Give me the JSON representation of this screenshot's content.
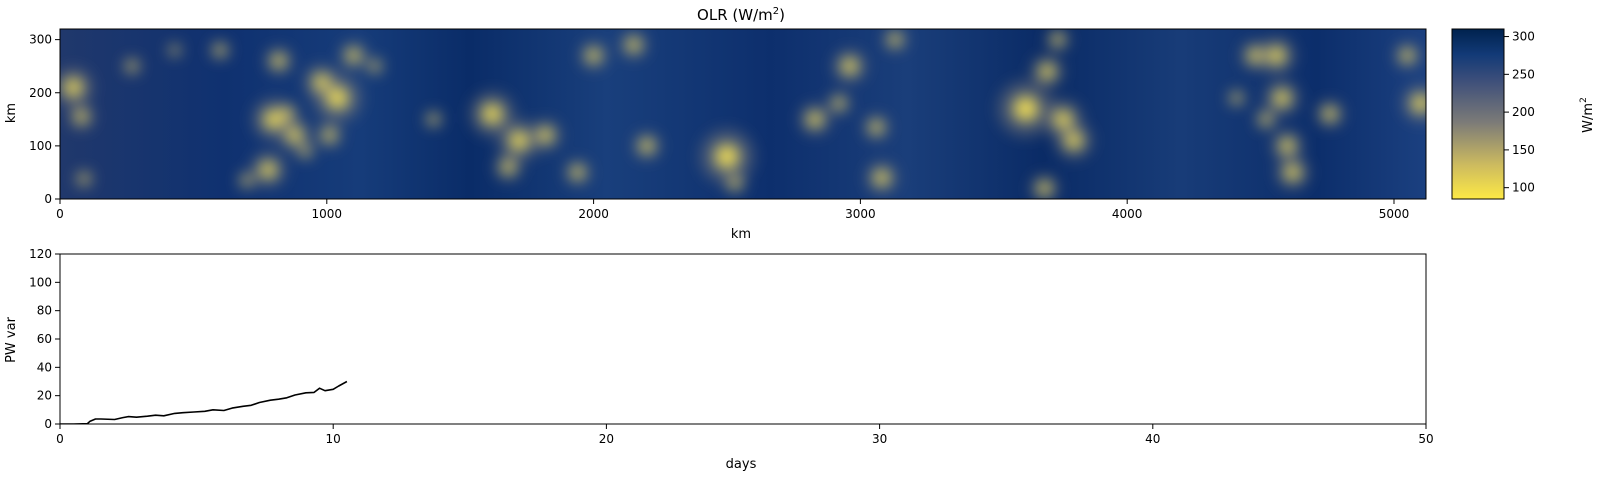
{
  "chart_data": [
    {
      "type": "heatmap",
      "title": "OLR (W/m",
      "title_sup": "2",
      "title_close": ")",
      "xlabel": "km",
      "ylabel": "km",
      "xlim": [
        0,
        5120
      ],
      "ylim": [
        0,
        320
      ],
      "xticks": [
        "0",
        "1000",
        "2000",
        "3000",
        "4000",
        "5000"
      ],
      "yticks": [
        "0",
        "100",
        "200",
        "300"
      ],
      "colormap": "cividis_r",
      "colorbar": {
        "label": "W/m",
        "label_sup": "2",
        "range": [
          85,
          310
        ],
        "ticks": [
          "100",
          "150",
          "200",
          "250",
          "300"
        ],
        "low_color": "#FDE945",
        "mid_color": "#7C7B78",
        "high_color": "#00224E"
      },
      "clouds": [
        {
          "x": 50,
          "y": 210,
          "r": 42
        },
        {
          "x": 90,
          "y": 38,
          "r": 20
        },
        {
          "x": 80,
          "y": 155,
          "r": 28
        },
        {
          "x": 270,
          "y": 250,
          "r": 20
        },
        {
          "x": 430,
          "y": 280,
          "r": 16
        },
        {
          "x": 600,
          "y": 280,
          "r": 22
        },
        {
          "x": 700,
          "y": 35,
          "r": 20
        },
        {
          "x": 780,
          "y": 55,
          "r": 38
        },
        {
          "x": 800,
          "y": 150,
          "r": 45
        },
        {
          "x": 850,
          "y": 160,
          "r": 26
        },
        {
          "x": 880,
          "y": 120,
          "r": 36
        },
        {
          "x": 820,
          "y": 260,
          "r": 30
        },
        {
          "x": 920,
          "y": 90,
          "r": 20
        },
        {
          "x": 980,
          "y": 220,
          "r": 38
        },
        {
          "x": 1040,
          "y": 190,
          "r": 52
        },
        {
          "x": 1010,
          "y": 120,
          "r": 28
        },
        {
          "x": 1100,
          "y": 270,
          "r": 30
        },
        {
          "x": 1180,
          "y": 250,
          "r": 20
        },
        {
          "x": 1400,
          "y": 150,
          "r": 20
        },
        {
          "x": 1620,
          "y": 160,
          "r": 48
        },
        {
          "x": 1720,
          "y": 110,
          "r": 45
        },
        {
          "x": 1680,
          "y": 60,
          "r": 30
        },
        {
          "x": 1820,
          "y": 120,
          "r": 34
        },
        {
          "x": 1940,
          "y": 50,
          "r": 28
        },
        {
          "x": 2000,
          "y": 270,
          "r": 30
        },
        {
          "x": 2150,
          "y": 290,
          "r": 30
        },
        {
          "x": 2200,
          "y": 100,
          "r": 30
        },
        {
          "x": 2500,
          "y": 80,
          "r": 58
        },
        {
          "x": 2530,
          "y": 30,
          "r": 24
        },
        {
          "x": 2830,
          "y": 150,
          "r": 34
        },
        {
          "x": 2920,
          "y": 180,
          "r": 25
        },
        {
          "x": 2960,
          "y": 250,
          "r": 36
        },
        {
          "x": 3060,
          "y": 135,
          "r": 28
        },
        {
          "x": 3080,
          "y": 40,
          "r": 34
        },
        {
          "x": 3130,
          "y": 300,
          "r": 26
        },
        {
          "x": 3620,
          "y": 170,
          "r": 60
        },
        {
          "x": 3700,
          "y": 240,
          "r": 35
        },
        {
          "x": 3760,
          "y": 150,
          "r": 42
        },
        {
          "x": 3800,
          "y": 110,
          "r": 40
        },
        {
          "x": 3740,
          "y": 300,
          "r": 25
        },
        {
          "x": 3690,
          "y": 20,
          "r": 30
        },
        {
          "x": 4410,
          "y": 190,
          "r": 20
        },
        {
          "x": 4480,
          "y": 270,
          "r": 32
        },
        {
          "x": 4560,
          "y": 270,
          "r": 40
        },
        {
          "x": 4580,
          "y": 190,
          "r": 38
        },
        {
          "x": 4520,
          "y": 150,
          "r": 24
        },
        {
          "x": 4600,
          "y": 100,
          "r": 34
        },
        {
          "x": 4620,
          "y": 50,
          "r": 36
        },
        {
          "x": 4760,
          "y": 160,
          "r": 30
        },
        {
          "x": 5050,
          "y": 270,
          "r": 28
        },
        {
          "x": 5100,
          "y": 180,
          "r": 40
        }
      ]
    },
    {
      "type": "line",
      "xlabel": "days",
      "ylabel": "PW var",
      "xlim": [
        0,
        50
      ],
      "ylim": [
        0,
        120
      ],
      "xticks": [
        "0",
        "10",
        "20",
        "30",
        "40",
        "50"
      ],
      "yticks": [
        "0",
        "20",
        "40",
        "60",
        "80",
        "100",
        "120"
      ],
      "line_color": "#000000",
      "x": [
        0,
        0.5,
        1.0,
        1.1,
        1.3,
        1.5,
        2.0,
        2.3,
        2.5,
        2.8,
        3.2,
        3.5,
        3.8,
        4.2,
        4.5,
        4.9,
        5.3,
        5.6,
        6.0,
        6.3,
        6.7,
        7.0,
        7.3,
        7.7,
        8.0,
        8.3,
        8.6,
        9.0,
        9.3,
        9.5,
        9.7,
        10.0,
        10.2,
        10.5
      ],
      "y": [
        0,
        0,
        0.2,
        2.0,
        3.5,
        3.5,
        3.2,
        4.5,
        5.2,
        4.8,
        5.5,
        6.2,
        5.8,
        7.5,
        8.0,
        8.5,
        9.0,
        10.0,
        9.5,
        11.2,
        12.5,
        13.2,
        15.2,
        16.8,
        17.5,
        18.5,
        20.5,
        22.0,
        22.3,
        25.3,
        23.5,
        24.5,
        26.8,
        30.0
      ]
    }
  ]
}
